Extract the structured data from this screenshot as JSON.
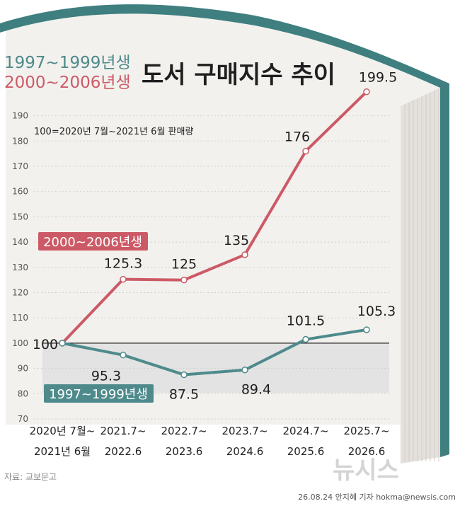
{
  "legend": {
    "series_b_label": "1997~1999년생",
    "series_a_label": "2000~2006년생"
  },
  "title": "도서 구매지수 추이",
  "note": "100=2020년 7월~2021년 6월 판매량",
  "source": "자료: 교보문고",
  "credit": "26.08.24 안지혜 기자 hokma@newsis.com",
  "watermark": "뉴시스",
  "colors": {
    "series_a": "#cc5a66",
    "series_b": "#4e8a8b",
    "book_edge": "#3f7f80",
    "page_bg": "#f3f1ee",
    "band": "#e3e3e3"
  },
  "chart_data": {
    "type": "line",
    "categories": [
      [
        "2020년 7월~",
        "2021년 6월"
      ],
      [
        "2021.7~",
        "2022.6"
      ],
      [
        "2022.7~",
        "2023.6"
      ],
      [
        "2023.7~",
        "2024.6"
      ],
      [
        "2024.7~",
        "2025.6"
      ],
      [
        "2025.7~",
        "2026.6"
      ]
    ],
    "series": [
      {
        "name": "2000~2006년생",
        "values": [
          100,
          125.3,
          125,
          135,
          176,
          199.5
        ],
        "labels": [
          "100",
          "125.3",
          "125",
          "135",
          "176",
          "199.5"
        ]
      },
      {
        "name": "1997~1999년생",
        "values": [
          100,
          95.3,
          87.5,
          89.4,
          101.5,
          105.3
        ],
        "labels": [
          "100",
          "95.3",
          "87.5",
          "89.4",
          "101.5",
          "105.3"
        ]
      }
    ],
    "ylim": [
      70,
      200
    ],
    "yticks": [
      70,
      80,
      90,
      100,
      110,
      120,
      130,
      140,
      150,
      160,
      170,
      180,
      190
    ],
    "baseline": 100,
    "grid": true
  }
}
